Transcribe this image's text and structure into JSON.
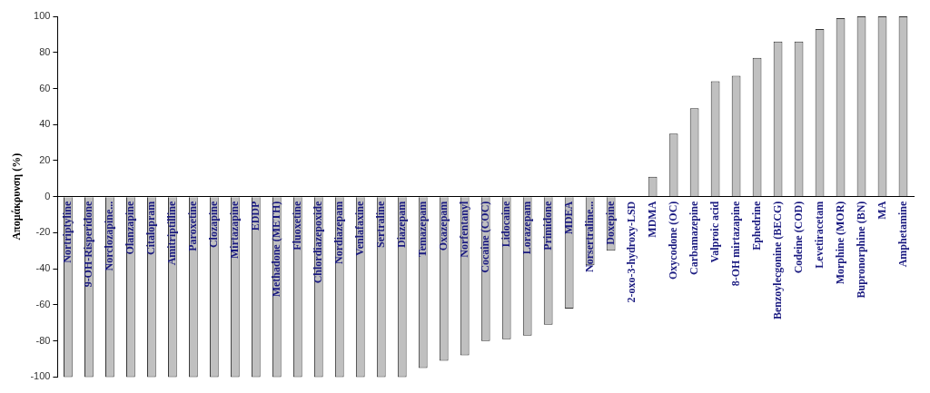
{
  "chart_data": {
    "type": "bar",
    "ylabel": "Απομάκρυνση (%)",
    "categories": [
      "Nortriptyline",
      "9-OH-Risperidone",
      "Norclozapine...",
      "Olanzapine",
      "Citalopram",
      "Amitriptilline",
      "Paroxetine",
      "Clozapine",
      "Mirtazapine",
      "EDDP",
      "Methadone (METH)",
      "Fluoxetine",
      "Chlordiazepoxide",
      "Nordiazepam",
      "Venlafaxine",
      "Sertraline",
      "Diazepam",
      "Temazepam",
      "Oxazepam",
      "Norfentanyl",
      "Cocaine (COC)",
      "Lidocaine",
      "Lorazepam",
      "Primidone",
      "MDEA",
      "Norsertraline...",
      "Doxepine",
      "2-oxo-3-hydroxy-LSD",
      "MDMA",
      "Oxycodone (OC)",
      "Carbamazepine",
      "Valproic acid",
      "8-OH mirtazapine",
      "Ephedrine",
      "Benzoylecgonine (BECG)",
      "Codeine (COD)",
      "Levetiracetam",
      "Morphine (MOR)",
      "Bupronorphine (BN)",
      "MA",
      "Amphetamine"
    ],
    "values": [
      -100,
      -100,
      -100,
      -100,
      -100,
      -100,
      -100,
      -100,
      -100,
      -100,
      -100,
      -100,
      -100,
      -100,
      -100,
      -100,
      -100,
      -95,
      -91,
      -88,
      -80,
      -79,
      -77,
      -71,
      -62,
      -38,
      -30,
      0,
      11,
      35,
      49,
      64,
      67,
      77,
      86,
      86,
      93,
      99,
      100,
      100,
      100
    ],
    "color": "#c0c0c0",
    "ylim": [
      -100,
      100
    ],
    "yticks": [
      -100,
      -80,
      -60,
      -40,
      -20,
      0,
      20,
      40,
      60,
      80,
      100
    ],
    "grid": false,
    "legend": false
  }
}
